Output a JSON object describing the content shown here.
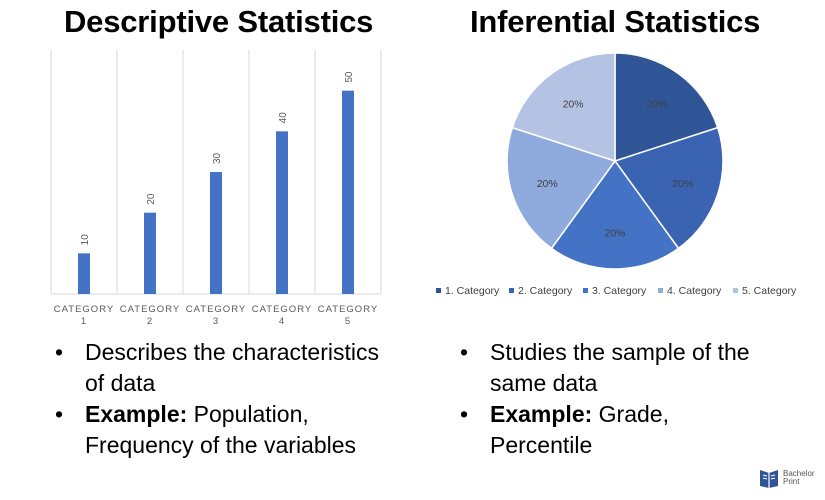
{
  "titles": {
    "left": "Descriptive Statistics",
    "right": "Inferential Statistics"
  },
  "chart_data": [
    {
      "type": "bar",
      "title": "",
      "categories": [
        "CATEGORY 1",
        "CATEGORY 2",
        "CATEGORY 3",
        "CATEGORY 4",
        "CATEGORY 5"
      ],
      "tick_lines": [
        [
          "CATEGORY",
          "1"
        ],
        [
          "CATEGORY",
          "2"
        ],
        [
          "CATEGORY",
          "3"
        ],
        [
          "CATEGORY",
          "4"
        ],
        [
          "CATEGORY",
          "5"
        ]
      ],
      "values": [
        10,
        20,
        30,
        40,
        50
      ],
      "data_labels": [
        "10",
        "20",
        "30",
        "40",
        "50"
      ],
      "xlabel": "",
      "ylabel": "",
      "ylim": [
        0,
        60
      ],
      "grid": "vertical",
      "legend": "none",
      "bar_color": "#4472c4"
    },
    {
      "type": "pie",
      "title": "",
      "labels": [
        "1. Category",
        "2. Category",
        "3. Category",
        "4. Category",
        "5. Category"
      ],
      "values": [
        20,
        20,
        20,
        20,
        20
      ],
      "data_labels": [
        "20%",
        "20%",
        "20%",
        "20%",
        "20%"
      ],
      "colors": [
        "#2f5597",
        "#3a63b2",
        "#4472c4",
        "#8faadc",
        "#b4c3e3"
      ],
      "legend": "bottom"
    }
  ],
  "left_bullets": [
    {
      "bold": "",
      "text": "Describes the characteristics of data"
    },
    {
      "bold": "Example:",
      "text": " Population, Frequency of the variables"
    }
  ],
  "right_bullets": [
    {
      "bold": "",
      "text": "Studies the sample of the same data"
    },
    {
      "bold": "Example:",
      "text": " Grade, Percentile"
    }
  ],
  "logo": {
    "line1": "Bachelor",
    "line2": "Print"
  }
}
